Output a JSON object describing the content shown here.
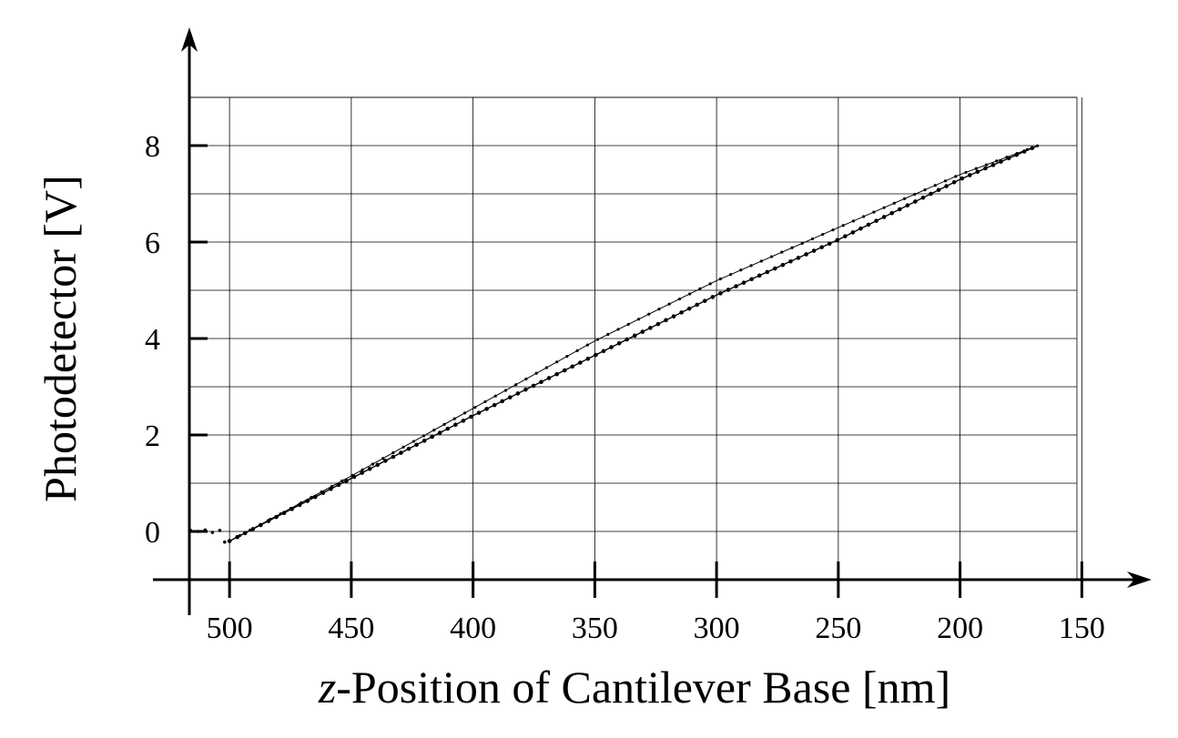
{
  "chart_data": {
    "type": "line",
    "title": "",
    "xlabel_prefix": "z",
    "xlabel_rest": "-Position of Cantilever Base [nm]",
    "ylabel": "Photodetector [V]",
    "x_reversed": true,
    "xlim": [
      516.5,
      152
    ],
    "ylim": [
      -1,
      9
    ],
    "x_ticks": [
      500,
      450,
      400,
      350,
      300,
      250,
      200,
      150
    ],
    "x_tick_labels": [
      "500",
      "450",
      "400",
      "350",
      "300",
      "250",
      "200",
      "150"
    ],
    "y_ticks": [
      0,
      2,
      4,
      6,
      8
    ],
    "y_tick_labels": [
      "0",
      "2",
      "4",
      "6",
      "8"
    ],
    "grid": true,
    "series": [
      {
        "style": "dense-dots",
        "x": [
          500,
          450,
          400,
          350,
          300,
          250,
          200,
          168
        ],
        "y": [
          -0.2,
          1.1,
          2.4,
          3.65,
          4.9,
          6.05,
          7.3,
          8.0
        ]
      },
      {
        "style": "small-dots",
        "x": [
          500,
          450,
          400,
          350,
          300,
          250,
          200,
          168
        ],
        "y": [
          -0.2,
          1.15,
          2.55,
          3.95,
          5.2,
          6.3,
          7.4,
          8.0
        ]
      },
      {
        "style": "noise-dots",
        "x": [
          516,
          513,
          510,
          507,
          504,
          502
        ],
        "y": [
          0.02,
          0.0,
          0.03,
          -0.02,
          0.02,
          -0.22
        ]
      }
    ]
  }
}
